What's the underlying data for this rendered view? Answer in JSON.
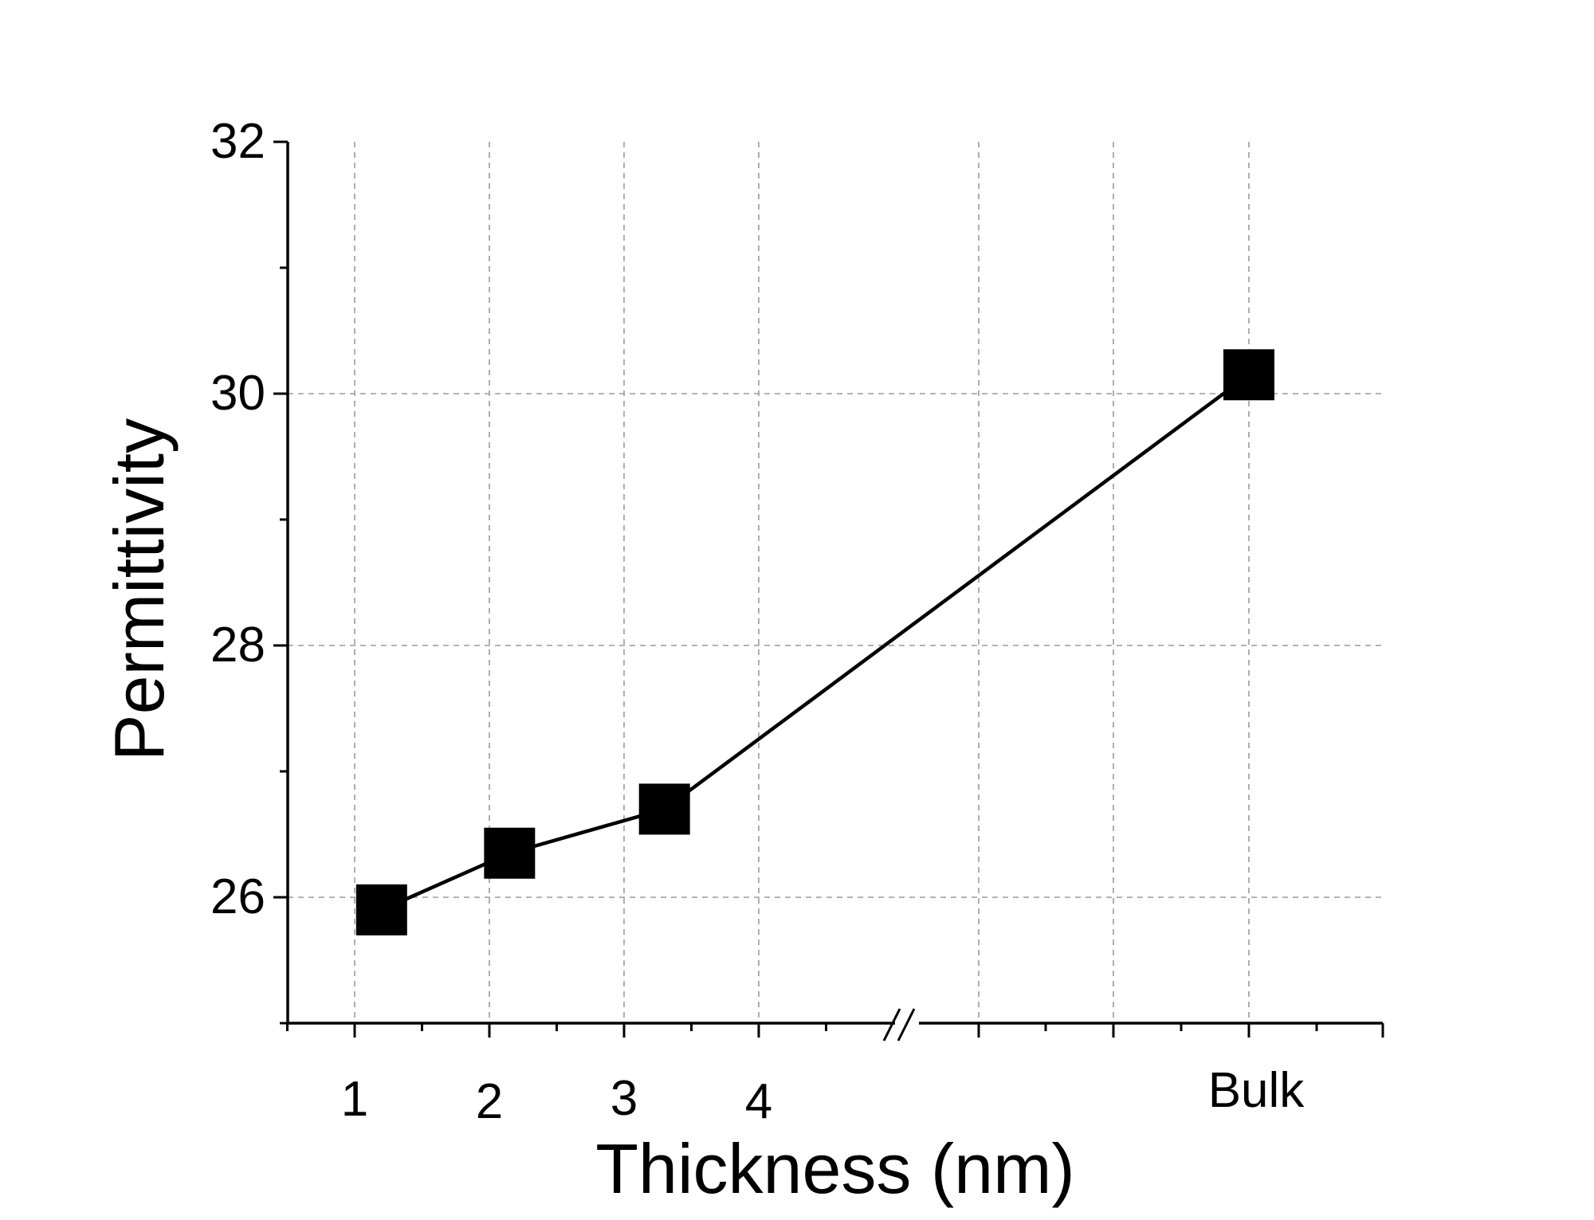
{
  "chart_data": {
    "type": "line",
    "title": "",
    "xlabel": "Thickness (nm)",
    "ylabel": "Permittivity",
    "x_tick_labels": [
      {
        "label": "1",
        "x": 1
      },
      {
        "label": "2",
        "x": 2
      },
      {
        "label": "3",
        "x": 3
      },
      {
        "label": "4",
        "x": 4
      },
      {
        "label": "Bulk",
        "x": "Bulk"
      }
    ],
    "y_tick_labels": [
      "26",
      "28",
      "30",
      "32"
    ],
    "ylim": [
      25,
      32
    ],
    "x_axis_break": true,
    "grid": true,
    "legend": "none",
    "series": [
      {
        "marker": "square",
        "color": "#000000",
        "points": [
          {
            "x": 1.2,
            "y": 25.9
          },
          {
            "x": 2.15,
            "y": 26.35
          },
          {
            "x": 3.3,
            "y": 26.7
          },
          {
            "x": "Bulk",
            "y": 30.15
          }
        ]
      }
    ]
  }
}
